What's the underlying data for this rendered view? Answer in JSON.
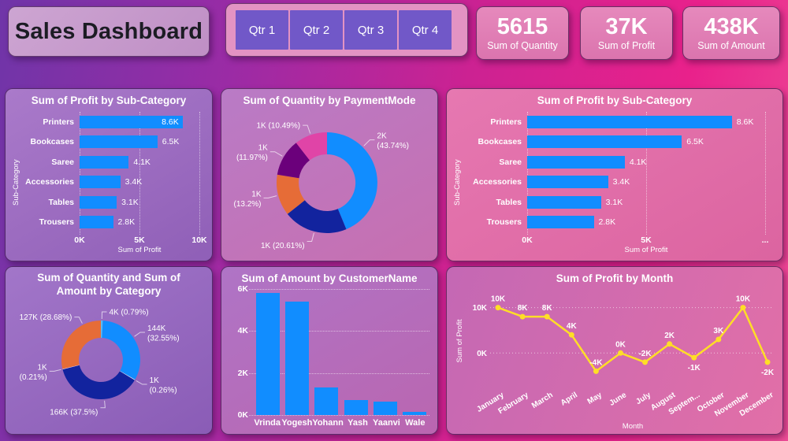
{
  "header": {
    "title": "Sales Dashboard",
    "quarter_buttons": [
      "Qtr 1",
      "Qtr 2",
      "Qtr 3",
      "Qtr 4"
    ],
    "kpis": [
      {
        "value": "5615",
        "label": "Sum of Quantity"
      },
      {
        "value": "37K",
        "label": "Sum of Profit"
      },
      {
        "value": "438K",
        "label": "Sum of Amount"
      }
    ]
  },
  "colors": {
    "background_left": "#6F35A8",
    "background_right": "#ED4B96",
    "bar_blue": "#118DFF",
    "navy": "#12239E",
    "orange": "#E66C37",
    "plum": "#6B007B",
    "pink": "#E044A7",
    "light_blue_sliver": "#58B9F5",
    "pale_sliver_1": "#DDEBF7",
    "pale_sliver_2": "#EADFF2",
    "line_yellow": "#FFDE26",
    "slicer_button": "#7158C8",
    "kpi_background": "#DB74AE"
  },
  "chart_data": [
    {
      "type": "bar",
      "orientation": "horizontal",
      "title": "Sum of Profit by Sub-Category",
      "categories": [
        "Printers",
        "Bookcases",
        "Saree",
        "Accessories",
        "Tables",
        "Trousers"
      ],
      "values": [
        8.6,
        6.5,
        4.1,
        3.4,
        3.1,
        2.8
      ],
      "value_labels": [
        "8.6K",
        "6.5K",
        "4.1K",
        "3.4K",
        "3.1K",
        "2.8K"
      ],
      "xlabel": "Sum of Profit",
      "ylabel": "Sub-Category",
      "xticks": [
        "0K",
        "5K",
        "10K"
      ],
      "xmax": 10,
      "bar_color": "#118DFF"
    },
    {
      "type": "pie",
      "subtype": "donut",
      "title": "Sum of Quantity by PaymentMode",
      "slices": [
        {
          "value_label": "2K",
          "pct": 43.74,
          "label_lines": [
            "2K",
            "(43.74%)"
          ],
          "color": "#118DFF"
        },
        {
          "value_label": "1K",
          "pct": 20.61,
          "label_lines": [
            "1K (20.61%)"
          ],
          "color": "#12239E"
        },
        {
          "value_label": "1K",
          "pct": 13.2,
          "label_lines": [
            "1K",
            "(13.2%)"
          ],
          "color": "#E66C37"
        },
        {
          "value_label": "1K",
          "pct": 11.97,
          "label_lines": [
            "1K",
            "(11.97%)"
          ],
          "color": "#6B007B"
        },
        {
          "value_label": "1K",
          "pct": 10.49,
          "label_lines": [
            "1K (10.49%)"
          ],
          "color": "#E044A7"
        }
      ]
    },
    {
      "type": "bar",
      "orientation": "horizontal",
      "title": "Sum of Profit by Sub-Category",
      "categories": [
        "Printers",
        "Bookcases",
        "Saree",
        "Accessories",
        "Tables",
        "Trousers"
      ],
      "values": [
        8.6,
        6.5,
        4.1,
        3.4,
        3.1,
        2.8
      ],
      "value_labels": [
        "8.6K",
        "6.5K",
        "4.1K",
        "3.4K",
        "3.1K",
        "2.8K"
      ],
      "xlabel": "Sum of Profit",
      "ylabel": "Sub-Category",
      "xticks": [
        "0K",
        "5K",
        "..."
      ],
      "xmax": 10,
      "bar_color": "#118DFF"
    },
    {
      "type": "pie",
      "subtype": "donut",
      "title": "Sum of Quantity and Sum of Amount by Category",
      "slices": [
        {
          "value_label": "4K",
          "pct": 0.79,
          "label_lines": [
            "4K (0.79%)"
          ],
          "color": "#58B9F5"
        },
        {
          "value_label": "144K",
          "pct": 32.55,
          "label_lines": [
            "144K",
            "(32.55%)"
          ],
          "color": "#118DFF"
        },
        {
          "value_label": "1K",
          "pct": 0.26,
          "label_lines": [
            "1K",
            "(0.26%)"
          ],
          "color": "#DDEBF7"
        },
        {
          "value_label": "166K",
          "pct": 37.5,
          "label_lines": [
            "166K (37.5%)"
          ],
          "color": "#12239E"
        },
        {
          "value_label": "1K",
          "pct": 0.21,
          "label_lines": [
            "1K",
            "(0.21%)"
          ],
          "color": "#EADFF2"
        },
        {
          "value_label": "127K",
          "pct": 28.68,
          "label_lines": [
            "127K (28.68%)"
          ],
          "color": "#E66C37"
        }
      ]
    },
    {
      "type": "bar",
      "orientation": "vertical",
      "title": "Sum of Amount by CustomerName",
      "categories": [
        "Vrinda",
        "Yogesh",
        "Yohann",
        "Yash",
        "Yaanvi",
        "Wale"
      ],
      "values": [
        5.8,
        5.4,
        1.3,
        0.7,
        0.63,
        0.15
      ],
      "ymax": 6,
      "yticks": [
        {
          "value": 0,
          "label": "0K"
        },
        {
          "value": 2,
          "label": "2K"
        },
        {
          "value": 4,
          "label": "4K"
        },
        {
          "value": 6,
          "label": "6K"
        }
      ],
      "bar_color": "#118DFF"
    },
    {
      "type": "line",
      "title": "Sum of Profit by Month",
      "x": [
        "January",
        "February",
        "March",
        "April",
        "May",
        "June",
        "July",
        "August",
        "Septem...",
        "October",
        "November",
        "December"
      ],
      "values": [
        10,
        8,
        8,
        4,
        -4,
        0,
        -2,
        2,
        -1,
        3,
        10,
        -2
      ],
      "point_labels": [
        "10K",
        "8K",
        "8K",
        "4K",
        "-4K",
        "0K",
        "-2K",
        "2K",
        "-1K",
        "3K",
        "10K",
        "-2K"
      ],
      "label_positions": [
        "above",
        "above",
        "above",
        "above",
        "above",
        "above",
        "above",
        "above",
        "below",
        "above",
        "above",
        "below"
      ],
      "ylim": [
        -6,
        12
      ],
      "yticks": [
        {
          "value": 10,
          "label": "10K"
        },
        {
          "value": 0,
          "label": "0K"
        }
      ],
      "xlabel": "Month",
      "ylabel": "Sum of Profit",
      "line_color": "#FFDE26"
    }
  ]
}
